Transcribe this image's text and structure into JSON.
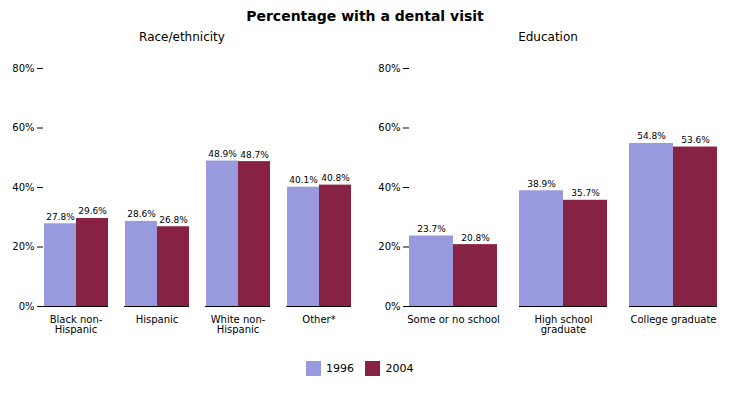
{
  "title": "Percentage with a dental visit",
  "legend": "bottom",
  "chart_data": [
    {
      "type": "bar",
      "title": "Race/ethnicity",
      "categories": [
        "Black non-\nHispanic",
        "Hispanic",
        "White non-\nHispanic",
        "Other*"
      ],
      "series": [
        {
          "name": "1996",
          "color": "#9999dd",
          "values": [
            27.8,
            28.6,
            48.9,
            40.1
          ],
          "value_labels": [
            "27.8%",
            "28.6%",
            "48.9%",
            "40.1%"
          ]
        },
        {
          "name": "2004",
          "color": "#882244",
          "values": [
            29.6,
            26.8,
            48.7,
            40.8
          ],
          "value_labels": [
            "29.6%",
            "26.8%",
            "48.7%",
            "40.8%"
          ]
        }
      ],
      "ylim": [
        0,
        80
      ],
      "yticks": [
        {
          "value": 0,
          "label": "0%"
        },
        {
          "value": 20,
          "label": "20%"
        },
        {
          "value": 40,
          "label": "40%"
        },
        {
          "value": 60,
          "label": "60%"
        },
        {
          "value": 80,
          "label": "80%"
        }
      ],
      "grid": false,
      "data_labels": true
    },
    {
      "type": "bar",
      "title": "Education",
      "categories": [
        "Some or no school",
        "High school\ngraduate",
        "College graduate"
      ],
      "series": [
        {
          "name": "1996",
          "color": "#9999dd",
          "values": [
            23.7,
            38.9,
            54.8
          ],
          "value_labels": [
            "23.7%",
            "38.9%",
            "54.8%"
          ]
        },
        {
          "name": "2004",
          "color": "#882244",
          "values": [
            20.8,
            35.7,
            53.6
          ],
          "value_labels": [
            "20.8%",
            "35.7%",
            "53.6%"
          ]
        }
      ],
      "ylim": [
        0,
        80
      ],
      "yticks": [
        {
          "value": 0,
          "label": "0%"
        },
        {
          "value": 20,
          "label": "20%"
        },
        {
          "value": 40,
          "label": "40%"
        },
        {
          "value": 60,
          "label": "60%"
        },
        {
          "value": 80,
          "label": "80%"
        }
      ],
      "grid": false,
      "data_labels": true
    }
  ]
}
